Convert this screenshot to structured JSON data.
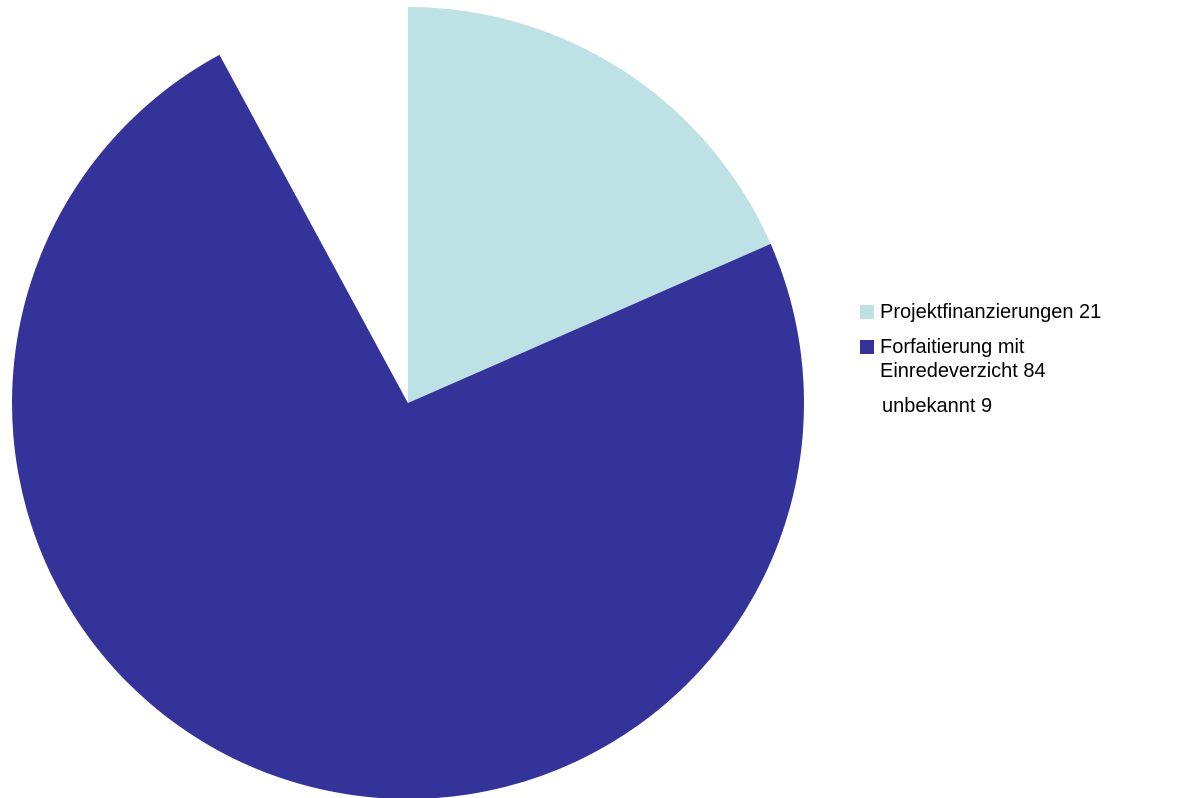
{
  "chart_data": {
    "type": "pie",
    "categories": [
      "Projektfinanzierungen",
      "Forfaitierung mit Einredeverzicht",
      "unbekannt"
    ],
    "values": [
      21,
      84,
      9
    ],
    "colors": [
      "#bde1e4",
      "#343399",
      "#ffffff"
    ],
    "start_angle_deg": 0,
    "direction": "clockwise",
    "legend_position": "right",
    "legend": [
      {
        "label": "Projektfinanzierungen 21",
        "color": "#bde1e4",
        "swatch": true
      },
      {
        "label": "Forfaitierung mit Einredeverzicht 84",
        "color": "#343399",
        "swatch": true
      },
      {
        "label": "unbekannt  9",
        "color": "#ffffff",
        "swatch": false
      }
    ]
  }
}
